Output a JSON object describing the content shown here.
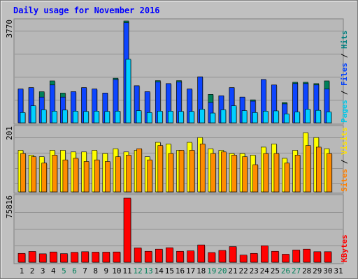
{
  "chart_data": {
    "type": "bar",
    "title": "Daily usage for November 2016",
    "days": [
      "1",
      "2",
      "3",
      "4",
      "5",
      "6",
      "7",
      "8",
      "9",
      "10",
      "11",
      "12",
      "13",
      "14",
      "15",
      "16",
      "17",
      "18",
      "19",
      "20",
      "21",
      "22",
      "23",
      "24",
      "25",
      "26",
      "27",
      "28",
      "29",
      "30",
      "31"
    ],
    "weekend_days": [
      "5",
      "6",
      "12",
      "13",
      "19",
      "20",
      "26",
      "27"
    ],
    "panels": [
      {
        "id": "top",
        "ymax_label": "3770",
        "ymax": 3770,
        "right_label": [
          {
            "text": "Pages",
            "color": "#00c8e8"
          },
          {
            "text": " / ",
            "color": "#000000"
          },
          {
            "text": "Files",
            "color": "#0040ff"
          },
          {
            "text": " / ",
            "color": "#000000"
          },
          {
            "text": "Hits",
            "color": "#008080"
          }
        ],
        "series": [
          {
            "name": "Hits",
            "color": "#00805a",
            "values": [
              1250,
              1300,
              1150,
              1550,
              1100,
              1150,
              1300,
              1250,
              1100,
              1650,
              3770,
              1370,
              1150,
              1560,
              1450,
              1560,
              1250,
              1700,
              1050,
              1000,
              1300,
              950,
              850,
              1600,
              1400,
              750,
              1500,
              1500,
              1450,
              1550,
              null
            ]
          },
          {
            "name": "Files",
            "color": "#0d45ff",
            "values": [
              1250,
              1300,
              950,
              1400,
              950,
              1150,
              1300,
              1250,
              1100,
              1600,
              3700,
              1370,
              1150,
              1510,
              1450,
              1510,
              1250,
              1700,
              750,
              1000,
              1300,
              950,
              800,
              1600,
              1400,
              700,
              1450,
              1450,
              1400,
              1250,
              null
            ]
          },
          {
            "name": "Pages",
            "color": "#00d0ff",
            "values": [
              380,
              630,
              480,
              430,
              470,
              430,
              420,
              430,
              420,
              430,
              2350,
              450,
              380,
              430,
              430,
              420,
              420,
              500,
              360,
              480,
              630,
              450,
              380,
              430,
              440,
              330,
              400,
              500,
              460,
              400,
              null
            ]
          }
        ]
      },
      {
        "id": "middle",
        "ymax_label": "201",
        "ymax": 201,
        "right_label": [
          {
            "text": "Sites",
            "color": "#ff8000"
          },
          {
            "text": " / ",
            "color": "#000000"
          },
          {
            "text": "Visits",
            "color": "#ffe000"
          }
        ],
        "series": [
          {
            "name": "Visits",
            "color": "#ffff00",
            "values": [
              130,
              115,
              110,
              130,
              130,
              125,
              125,
              130,
              120,
              135,
              125,
              130,
              110,
              155,
              150,
              130,
              155,
              170,
              135,
              130,
              120,
              120,
              115,
              140,
              150,
              105,
              130,
              185,
              170,
              135,
              null
            ]
          },
          {
            "name": "Sites",
            "color": "#ff8c00",
            "values": [
              120,
              110,
              90,
              115,
              100,
              105,
              95,
              100,
              95,
              110,
              115,
              135,
              100,
              145,
              120,
              130,
              130,
              150,
              120,
              125,
              115,
              110,
              85,
              120,
              120,
              90,
              115,
              145,
              140,
              120,
              null
            ]
          }
        ]
      },
      {
        "id": "bottom",
        "ymax_label": "75816",
        "ymax": 75816,
        "right_label": [
          {
            "text": "KBytes",
            "color": "#ff0000"
          }
        ],
        "series": [
          {
            "name": "KBytes",
            "color": "#ff0000",
            "values": [
              10500,
              12800,
              10000,
              12200,
              10200,
              11800,
              12500,
              12000,
              12000,
              12200,
              75816,
              17000,
              13000,
              15500,
              17200,
              13000,
              13500,
              20500,
              11500,
              14000,
              18500,
              8500,
              10500,
              19500,
              13000,
              9500,
              14500,
              15500,
              12500,
              12500,
              null
            ]
          }
        ]
      }
    ]
  }
}
